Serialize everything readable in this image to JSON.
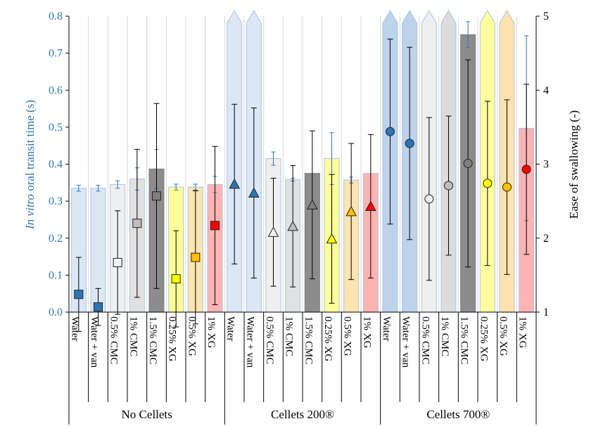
{
  "chart_data": {
    "type": "bar",
    "left_axis": {
      "title_italic": "In vitro",
      "title_rest": " oral transit time (s)",
      "range": [
        0,
        0.8
      ],
      "ticks": [
        "0.0",
        "0.1",
        "0.2",
        "0.3",
        "0.4",
        "0.5",
        "0.6",
        "0.7",
        "0.8"
      ],
      "color": "#2e75b6"
    },
    "right_axis": {
      "title": "Ease of swallowing (-)",
      "range": [
        1,
        5
      ],
      "ticks": [
        "1",
        "2",
        "3",
        "4",
        "5"
      ]
    },
    "groups": [
      {
        "label": "No Cellets",
        "marker": "square",
        "categories": [
          {
            "label": "Water",
            "bar": 0.335,
            "bar_err": 0.008,
            "ease": 1.24,
            "ease_err": 0.5
          },
          {
            "label": "Water + van",
            "bar": 0.335,
            "bar_err": 0.008,
            "ease": 1.07,
            "ease_err": 0.25
          },
          {
            "label": "0.5% CMC",
            "bar": 0.345,
            "bar_err": 0.01,
            "ease": 1.67,
            "ease_err": 0.7
          },
          {
            "label": "1% CMC",
            "bar": 0.36,
            "bar_err": 0.03,
            "ease": 2.2,
            "ease_err": 1.0
          },
          {
            "label": "1.5% CMC",
            "bar": 0.387,
            "bar_err": 0.053,
            "ease": 2.57,
            "ease_err": 1.25
          },
          {
            "label": "0.25% XG",
            "bar": 0.338,
            "bar_err": 0.008,
            "ease": 1.45,
            "ease_err": 0.65
          },
          {
            "label": "0.5% XG",
            "bar": 0.338,
            "bar_err": 0.008,
            "ease": 1.74,
            "ease_err": 0.9
          },
          {
            "label": "1% XG",
            "bar": 0.345,
            "bar_err": 0.022,
            "ease": 2.17,
            "ease_err": 1.07
          }
        ]
      },
      {
        "label": "Cellets 200®",
        "marker": "triangle",
        "categories": [
          {
            "label": "Water",
            "bar": 0.8,
            "bar_err": 0,
            "ease": 2.73,
            "ease_err": 1.08
          },
          {
            "label": "Water + van",
            "bar": 0.8,
            "bar_err": 0,
            "ease": 2.61,
            "ease_err": 1.15
          },
          {
            "label": "0.5% CMC",
            "bar": 0.415,
            "bar_err": 0.018,
            "ease": 2.08,
            "ease_err": 0.73
          },
          {
            "label": "1% CMC",
            "bar": 0.358,
            "bar_err": 0.004,
            "ease": 2.16,
            "ease_err": 0.82
          },
          {
            "label": "1.5% CMC",
            "bar": 0.375,
            "bar_err": 0.0,
            "ease": 2.45,
            "ease_err": 1.0
          },
          {
            "label": "0.25% XG",
            "bar": 0.415,
            "bar_err": 0.07,
            "ease": 1.99,
            "ease_err": 0.87
          },
          {
            "label": "0.5% XG",
            "bar": 0.357,
            "bar_err": 0.008,
            "ease": 2.36,
            "ease_err": 0.92
          },
          {
            "label": "1% XG",
            "bar": 0.375,
            "bar_err": 0.0,
            "ease": 2.43,
            "ease_err": 0.97
          }
        ]
      },
      {
        "label": "Cellets 700®",
        "marker": "circle",
        "categories": [
          {
            "label": "Water",
            "bar": 0.8,
            "bar_err": 0,
            "ease": 3.44,
            "ease_err": 1.25
          },
          {
            "label": "Water + van",
            "bar": 0.8,
            "bar_err": 0,
            "ease": 3.28,
            "ease_err": 1.3
          },
          {
            "label": "0.5% CMC",
            "bar": 0.8,
            "bar_err": 0,
            "ease": 2.53,
            "ease_err": 1.1
          },
          {
            "label": "1% CMC",
            "bar": 0.8,
            "bar_err": 0,
            "ease": 2.71,
            "ease_err": 0.94
          },
          {
            "label": "1.5% CMC",
            "bar": 0.75,
            "bar_err": 0.035,
            "ease": 3.01,
            "ease_err": 1.4
          },
          {
            "label": "0.25% XG",
            "bar": 0.8,
            "bar_err": 0,
            "ease": 2.74,
            "ease_err": 1.11
          },
          {
            "label": "0.5% XG",
            "bar": 0.8,
            "bar_err": 0,
            "ease": 2.69,
            "ease_err": 1.18
          },
          {
            "label": "1% XG",
            "bar": 0.497,
            "bar_err": 0.25,
            "ease": 2.93,
            "ease_err": 1.15
          }
        ]
      }
    ],
    "bar_fill_colors": [
      "#dbe7f4",
      "#dbe7f4",
      "#efefef",
      "#e1e1e1",
      "#8c8c8c",
      "#ffff99",
      "#fde4b0",
      "#ffb3b3"
    ],
    "bar_fill_colors_700": [
      "#bdd3ec",
      "#bdd3ec",
      "#efefef",
      "#dcdcdc",
      "#8c8c8c",
      "#ffffa0",
      "#fde2ad",
      "#ffb3b3"
    ],
    "marker_colors": [
      "#2e75b6",
      "#2e75b6",
      "#f2f2f2",
      "#bfbfbf",
      "#7f7f7f",
      "#ffff00",
      "#ffc000",
      "#ff0000"
    ],
    "bar_border_color": "#a9c4e4",
    "error_bar_color_left": "#2e75b6"
  }
}
